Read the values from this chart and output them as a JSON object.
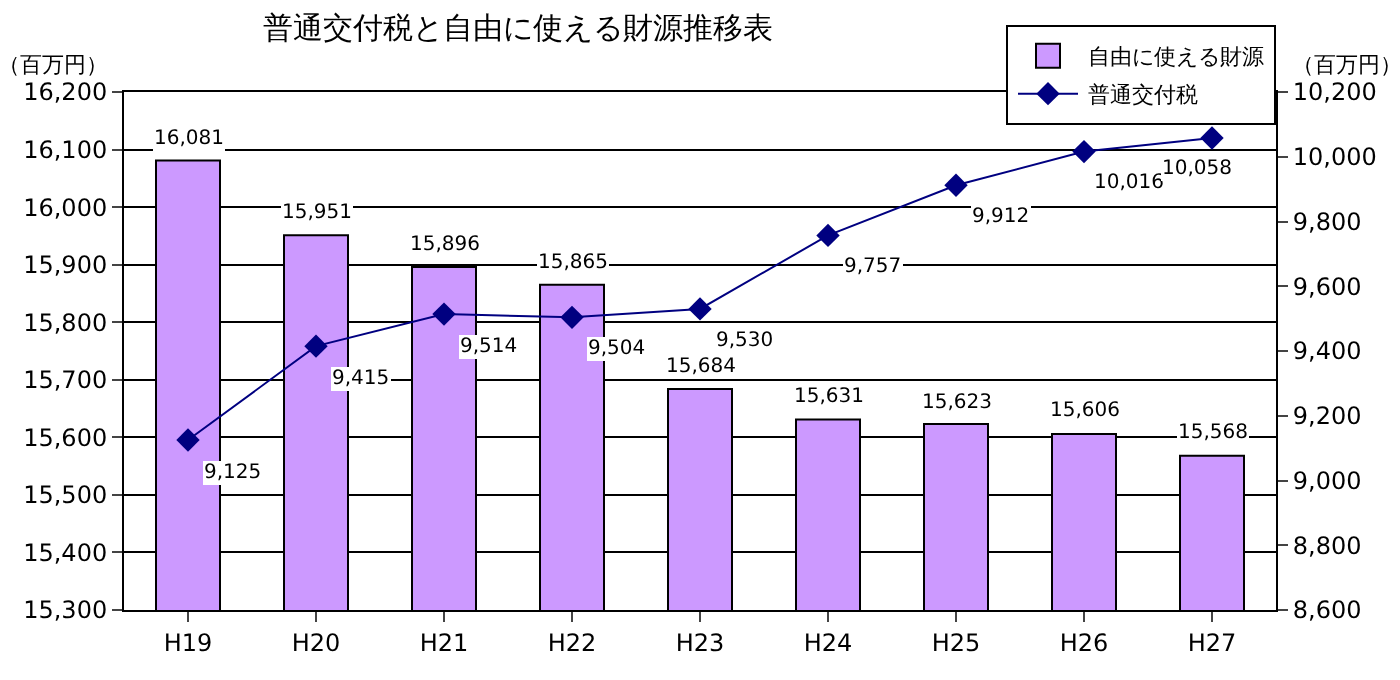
{
  "chart_data": {
    "type": "bar",
    "title": "普通交付税と自由に使える財源推移表",
    "ylabel": "（百万円）",
    "y2label": "（百万円）",
    "categories": [
      "H19",
      "H20",
      "H21",
      "H22",
      "H23",
      "H24",
      "H25",
      "H26",
      "H27"
    ],
    "series": [
      {
        "name": "自由に使える財源",
        "color": "#cc99ff",
        "values": [
          16081,
          15951,
          15896,
          15865,
          15684,
          15631,
          15623,
          15606,
          15568
        ],
        "value_labels": [
          "16,081",
          "15,951",
          "15,896",
          "15,865",
          "15,684",
          "15,631",
          "15,623",
          "15,606",
          "15,568"
        ]
      },
      {
        "name": "普通交付税",
        "type": "line",
        "axis": "y2",
        "color": "#000080",
        "marker": "diamond",
        "values": [
          9125,
          9415,
          9514,
          9504,
          9530,
          9757,
          9912,
          10016,
          10058
        ],
        "value_labels": [
          "9,125",
          "9,415",
          "9,514",
          "9,504",
          "9,530",
          "9,757",
          "9,912",
          "10,016",
          "10,058"
        ]
      }
    ],
    "ylim": [
      15300,
      16200
    ],
    "yticks": [
      {
        "value": 15300,
        "label": "15,300"
      },
      {
        "value": 15400,
        "label": "15,400"
      },
      {
        "value": 15500,
        "label": "15,500"
      },
      {
        "value": 15600,
        "label": "15,600"
      },
      {
        "value": 15700,
        "label": "15,700"
      },
      {
        "value": 15800,
        "label": "15,800"
      },
      {
        "value": 15900,
        "label": "15,900"
      },
      {
        "value": 16000,
        "label": "16,000"
      },
      {
        "value": 16100,
        "label": "16,100"
      },
      {
        "value": 16200,
        "label": "16,200"
      }
    ],
    "y2lim": [
      8600,
      10200
    ],
    "y2ticks": [
      {
        "value": 8600,
        "label": "8,600"
      },
      {
        "value": 8800,
        "label": "8,800"
      },
      {
        "value": 9000,
        "label": "9,000"
      },
      {
        "value": 9200,
        "label": "9,200"
      },
      {
        "value": 9400,
        "label": "9,400"
      },
      {
        "value": 9600,
        "label": "9,600"
      },
      {
        "value": 9800,
        "label": "9,800"
      },
      {
        "value": 10000,
        "label": "10,000"
      },
      {
        "value": 10200,
        "label": "10,200"
      }
    ],
    "grid": "y",
    "legend": "top right"
  }
}
